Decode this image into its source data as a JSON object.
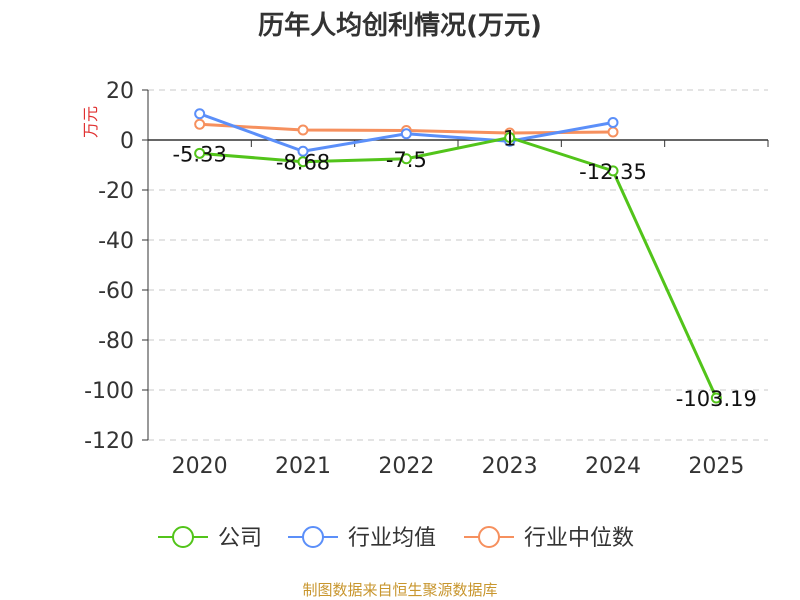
{
  "chart_data": {
    "type": "line",
    "title": "历年人均创利情况(万元)",
    "ylabel": "万元",
    "categories": [
      "2020",
      "2021",
      "2022",
      "2023",
      "2024",
      "2025"
    ],
    "yticks": [
      "20",
      "0",
      "-20",
      "-40",
      "-60",
      "-80",
      "-100",
      "-120"
    ],
    "ylim": [
      -120,
      20
    ],
    "grid": true,
    "legend_position": "bottom",
    "series": [
      {
        "name": "公司",
        "color": "#52c41a",
        "values": [
          -5.33,
          -8.68,
          -7.5,
          1,
          -12.35,
          -103.19
        ],
        "labels": [
          "-5.33",
          "-8.68",
          "-7.5",
          "1",
          "-12.35",
          "-103.19"
        ]
      },
      {
        "name": "行业均值",
        "color": "#5b8ff9",
        "values": [
          10.5,
          -4.5,
          2.5,
          -0.5,
          7,
          null
        ]
      },
      {
        "name": "行业中位数",
        "color": "#f6905e",
        "values": [
          6.3,
          4,
          3.8,
          2.8,
          3.2,
          null
        ]
      }
    ],
    "source": "制图数据来自恒生聚源数据库"
  }
}
